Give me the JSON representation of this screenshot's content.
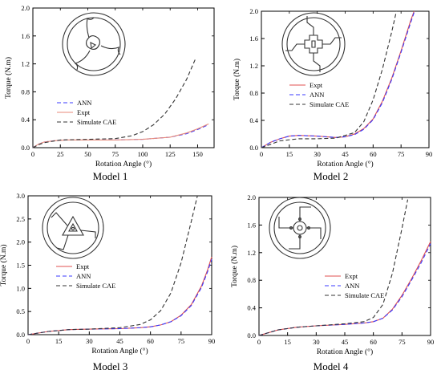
{
  "chart_data": [
    {
      "type": "line",
      "caption": "Model 1",
      "xlabel": "Rotation Angle (°)",
      "ylabel": "Torque (N.m)",
      "xlim": [
        0,
        165
      ],
      "ylim": [
        0,
        2.0
      ],
      "xticks": [
        0,
        25,
        50,
        75,
        100,
        125,
        150
      ],
      "yticks": [
        0.0,
        0.4,
        0.8,
        1.2,
        1.6,
        2.0
      ],
      "xtick_labels": [
        "0",
        "25",
        "50",
        "75",
        "100",
        "125",
        "150"
      ],
      "ytick_labels": [
        "0.0",
        "0.4",
        "0.8",
        "1.2",
        "1.6",
        "2.0"
      ],
      "legend_position": "center-left",
      "inset": "model1",
      "series": [
        {
          "name": "ANN",
          "color": "#3a3aff",
          "dash": "5,3",
          "x": [
            0,
            5,
            10,
            20,
            30,
            50,
            75,
            100,
            125,
            140,
            150,
            160
          ],
          "y": [
            0,
            0.05,
            0.08,
            0.1,
            0.11,
            0.11,
            0.11,
            0.12,
            0.15,
            0.2,
            0.26,
            0.33
          ]
        },
        {
          "name": "Expt",
          "color": "#e88a7a",
          "dash": "",
          "x": [
            0,
            5,
            10,
            20,
            30,
            50,
            75,
            100,
            125,
            140,
            150,
            160
          ],
          "y": [
            0,
            0.05,
            0.08,
            0.1,
            0.11,
            0.11,
            0.11,
            0.12,
            0.15,
            0.21,
            0.27,
            0.34
          ]
        },
        {
          "name": "Simulate CAE",
          "color": "#333333",
          "dash": "5,3",
          "x": [
            0,
            5,
            10,
            25,
            50,
            75,
            90,
            100,
            110,
            120,
            130,
            140,
            148
          ],
          "y": [
            0,
            0.04,
            0.07,
            0.11,
            0.12,
            0.13,
            0.17,
            0.23,
            0.33,
            0.48,
            0.7,
            0.98,
            1.27
          ]
        }
      ]
    },
    {
      "type": "line",
      "caption": "Model 2",
      "xlabel": "Rotation Angle (°)",
      "ylabel": "Torque (N.m)",
      "xlim": [
        0,
        90
      ],
      "ylim": [
        0,
        2.0
      ],
      "xticks": [
        0,
        15,
        30,
        45,
        60,
        75,
        90
      ],
      "yticks": [
        0.0,
        0.4,
        0.8,
        1.2,
        1.6,
        2.0
      ],
      "xtick_labels": [
        "0",
        "15",
        "30",
        "45",
        "60",
        "75",
        "90"
      ],
      "ytick_labels": [
        "0.0",
        "0.4",
        "0.8",
        "1.2",
        "1.6",
        "2.0"
      ],
      "legend_position": "center-left",
      "inset": "model2",
      "series": [
        {
          "name": "Expt",
          "color": "#e05050",
          "dash": "",
          "x": [
            0,
            5,
            10,
            15,
            20,
            30,
            40,
            45,
            50,
            55,
            60,
            65,
            70,
            75,
            80,
            82
          ],
          "y": [
            0,
            0.08,
            0.13,
            0.17,
            0.18,
            0.17,
            0.15,
            0.16,
            0.2,
            0.28,
            0.42,
            0.68,
            1.02,
            1.42,
            1.85,
            2.0
          ]
        },
        {
          "name": "ANN",
          "color": "#3a3aff",
          "dash": "5,3",
          "x": [
            0,
            5,
            10,
            15,
            20,
            30,
            40,
            45,
            50,
            55,
            60,
            65,
            70,
            75,
            80,
            82
          ],
          "y": [
            0,
            0.08,
            0.13,
            0.17,
            0.18,
            0.17,
            0.15,
            0.16,
            0.19,
            0.27,
            0.41,
            0.66,
            1.0,
            1.4,
            1.82,
            1.98
          ]
        },
        {
          "name": "Simulate CAE",
          "color": "#333333",
          "dash": "5,3",
          "x": [
            0,
            5,
            10,
            20,
            30,
            40,
            50,
            55,
            60,
            65,
            70,
            72.5
          ],
          "y": [
            0,
            0.05,
            0.1,
            0.13,
            0.13,
            0.14,
            0.22,
            0.38,
            0.7,
            1.15,
            1.7,
            2.0
          ]
        }
      ]
    },
    {
      "type": "line",
      "caption": "Model 3",
      "xlabel": "Rotation Angle (°)",
      "ylabel": "Torque (N.m)",
      "xlim": [
        0,
        90
      ],
      "ylim": [
        0,
        3.0
      ],
      "xticks": [
        0,
        15,
        30,
        45,
        60,
        75,
        90
      ],
      "yticks": [
        0.0,
        0.5,
        1.0,
        1.5,
        2.0,
        2.5,
        3.0
      ],
      "xtick_labels": [
        "0",
        "15",
        "30",
        "45",
        "60",
        "75",
        "90"
      ],
      "ytick_labels": [
        "0.0",
        "0.5",
        "1.0",
        "1.5",
        "2.0",
        "2.5",
        "3.0"
      ],
      "legend_position": "center-left",
      "inset": "model3",
      "series": [
        {
          "name": "Expt",
          "color": "#e05050",
          "dash": "",
          "x": [
            0,
            10,
            20,
            30,
            45,
            55,
            60,
            65,
            70,
            75,
            80,
            85,
            88,
            90
          ],
          "y": [
            0,
            0.07,
            0.11,
            0.12,
            0.13,
            0.15,
            0.17,
            0.21,
            0.28,
            0.42,
            0.65,
            1.05,
            1.4,
            1.68
          ]
        },
        {
          "name": "ANN",
          "color": "#3a3aff",
          "dash": "5,3",
          "x": [
            0,
            10,
            20,
            30,
            45,
            55,
            60,
            65,
            70,
            75,
            80,
            85,
            88,
            90
          ],
          "y": [
            0,
            0.07,
            0.11,
            0.12,
            0.13,
            0.15,
            0.17,
            0.21,
            0.28,
            0.41,
            0.63,
            1.02,
            1.36,
            1.63
          ]
        },
        {
          "name": "Simulate CAE",
          "color": "#333333",
          "dash": "5,3",
          "x": [
            0,
            10,
            20,
            30,
            45,
            55,
            60,
            65,
            70,
            75,
            80,
            83
          ],
          "y": [
            0,
            0.07,
            0.11,
            0.12,
            0.15,
            0.22,
            0.32,
            0.52,
            0.9,
            1.55,
            2.45,
            3.0
          ]
        }
      ]
    },
    {
      "type": "line",
      "caption": "Model 4",
      "xlabel": "Rotation Angle (°)",
      "ylabel": "Torque (N.m)",
      "xlim": [
        0,
        90
      ],
      "ylim": [
        0,
        2.0
      ],
      "xticks": [
        0,
        15,
        30,
        45,
        60,
        75,
        90
      ],
      "yticks": [
        0.0,
        0.4,
        0.8,
        1.2,
        1.6,
        2.0
      ],
      "xtick_labels": [
        "0",
        "15",
        "30",
        "45",
        "60",
        "75",
        "90"
      ],
      "ytick_labels": [
        "0.0",
        "0.4",
        "0.8",
        "1.2",
        "1.6",
        "2.0"
      ],
      "legend_position": "center-right",
      "inset": "model4",
      "series": [
        {
          "name": "Expt",
          "color": "#e05050",
          "dash": "",
          "x": [
            0,
            10,
            20,
            30,
            45,
            55,
            60,
            65,
            70,
            75,
            80,
            85,
            90
          ],
          "y": [
            0,
            0.08,
            0.12,
            0.14,
            0.16,
            0.18,
            0.2,
            0.25,
            0.38,
            0.58,
            0.82,
            1.08,
            1.36
          ]
        },
        {
          "name": "ANN",
          "color": "#3a3aff",
          "dash": "5,3",
          "x": [
            0,
            10,
            20,
            30,
            45,
            55,
            60,
            65,
            70,
            75,
            80,
            85,
            90
          ],
          "y": [
            0,
            0.08,
            0.12,
            0.14,
            0.16,
            0.18,
            0.2,
            0.25,
            0.37,
            0.56,
            0.8,
            1.05,
            1.33
          ]
        },
        {
          "name": "Simulate CAE",
          "color": "#333333",
          "dash": "5,3",
          "x": [
            0,
            10,
            20,
            30,
            45,
            55,
            60,
            65,
            70,
            75,
            78
          ],
          "y": [
            0,
            0.08,
            0.12,
            0.14,
            0.17,
            0.2,
            0.26,
            0.45,
            0.9,
            1.55,
            1.97
          ]
        }
      ]
    }
  ]
}
